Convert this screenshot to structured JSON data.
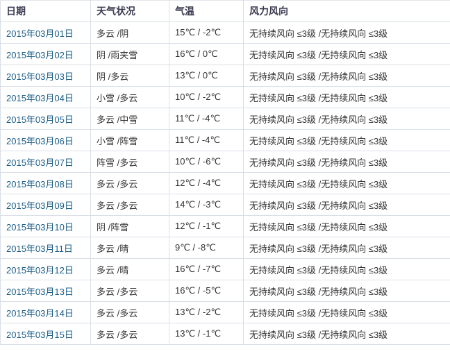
{
  "colors": {
    "date_link": "#1a5c85",
    "header_text": "#3b3b52",
    "body_text": "#333333",
    "grid_line": "#d9dfe6",
    "outer_border": "#c6ccd2",
    "background": "#ffffff"
  },
  "table": {
    "columns": [
      {
        "key": "date",
        "label": "日期"
      },
      {
        "key": "weather",
        "label": "天气状况"
      },
      {
        "key": "temp",
        "label": "气温"
      },
      {
        "key": "wind",
        "label": "风力风向"
      }
    ],
    "rows": [
      {
        "date": "2015年03月01日",
        "weather": "多云 /阴",
        "temp": "15℃ / -2℃",
        "wind": "无持续风向 ≤3级 /无持续风向 ≤3级"
      },
      {
        "date": "2015年03月02日",
        "weather": "阴 /雨夹雪",
        "temp": "16℃ / 0℃",
        "wind": "无持续风向 ≤3级 /无持续风向 ≤3级"
      },
      {
        "date": "2015年03月03日",
        "weather": "阴 /多云",
        "temp": "13℃ / 0℃",
        "wind": "无持续风向 ≤3级 /无持续风向 ≤3级"
      },
      {
        "date": "2015年03月04日",
        "weather": "小雪 /多云",
        "temp": "10℃ / -2℃",
        "wind": "无持续风向 ≤3级 /无持续风向 ≤3级"
      },
      {
        "date": "2015年03月05日",
        "weather": "多云 /中雪",
        "temp": "11℃ / -4℃",
        "wind": "无持续风向 ≤3级 /无持续风向 ≤3级"
      },
      {
        "date": "2015年03月06日",
        "weather": "小雪 /阵雪",
        "temp": "11℃ / -4℃",
        "wind": "无持续风向 ≤3级 /无持续风向 ≤3级"
      },
      {
        "date": "2015年03月07日",
        "weather": "阵雪 /多云",
        "temp": "10℃ / -6℃",
        "wind": "无持续风向 ≤3级 /无持续风向 ≤3级"
      },
      {
        "date": "2015年03月08日",
        "weather": "多云 /多云",
        "temp": "12℃ / -4℃",
        "wind": "无持续风向 ≤3级 /无持续风向 ≤3级"
      },
      {
        "date": "2015年03月09日",
        "weather": "多云 /多云",
        "temp": "14℃ / -3℃",
        "wind": "无持续风向 ≤3级 /无持续风向 ≤3级"
      },
      {
        "date": "2015年03月10日",
        "weather": "阴 /阵雪",
        "temp": "12℃ / -1℃",
        "wind": "无持续风向 ≤3级 /无持续风向 ≤3级"
      },
      {
        "date": "2015年03月11日",
        "weather": "多云 /晴",
        "temp": "9℃ / -8℃",
        "wind": "无持续风向 ≤3级 /无持续风向 ≤3级"
      },
      {
        "date": "2015年03月12日",
        "weather": "多云 /晴",
        "temp": "16℃ / -7℃",
        "wind": "无持续风向 ≤3级 /无持续风向 ≤3级"
      },
      {
        "date": "2015年03月13日",
        "weather": "多云 /多云",
        "temp": "16℃ / -5℃",
        "wind": "无持续风向 ≤3级 /无持续风向 ≤3级"
      },
      {
        "date": "2015年03月14日",
        "weather": "多云 /多云",
        "temp": "13℃ / -2℃",
        "wind": "无持续风向 ≤3级 /无持续风向 ≤3级"
      },
      {
        "date": "2015年03月15日",
        "weather": "多云 /多云",
        "temp": "13℃ / -1℃",
        "wind": "无持续风向 ≤3级 /无持续风向 ≤3级"
      }
    ]
  }
}
